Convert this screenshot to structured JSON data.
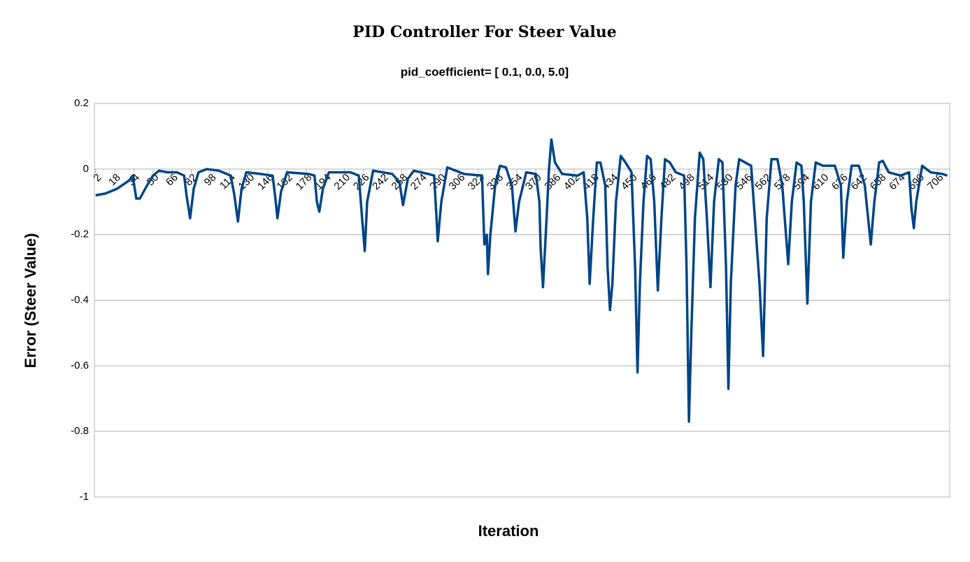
{
  "chart_data": {
    "type": "line",
    "title": "PID Controller For Steer Value",
    "subtitle": "pid_coefficient= [ 0.1, 0.0, 5.0]",
    "x_label": "Iteration",
    "y_label": "Error (Steer Value)",
    "xlim": [
      1,
      716
    ],
    "xticks": [
      2,
      18,
      34,
      50,
      66,
      82,
      98,
      114,
      130,
      146,
      162,
      178,
      194,
      210,
      226,
      242,
      258,
      274,
      290,
      306,
      322,
      338,
      354,
      370,
      386,
      402,
      418,
      434,
      450,
      466,
      482,
      498,
      514,
      530,
      546,
      562,
      578,
      594,
      610,
      626,
      642,
      658,
      674,
      690,
      706
    ],
    "ylim": [
      -1,
      0.2
    ],
    "yticks": [
      -1,
      -0.8,
      -0.6,
      -0.4,
      -0.2,
      0,
      0.2
    ],
    "grid": true,
    "x": [
      2,
      10,
      20,
      30,
      33,
      36,
      39,
      45,
      50,
      55,
      62,
      70,
      76,
      78,
      81,
      84,
      88,
      95,
      105,
      115,
      118,
      121,
      124,
      128,
      140,
      150,
      152,
      154,
      157,
      162,
      180,
      185,
      187,
      189,
      192,
      197,
      215,
      222,
      225,
      227,
      229,
      234,
      250,
      256,
      259,
      263,
      268,
      280,
      285,
      287,
      288,
      291,
      296,
      310,
      325,
      327,
      329,
      330,
      332,
      336,
      340,
      345,
      350,
      353,
      356,
      362,
      370,
      373,
      374,
      376,
      379,
      381,
      383,
      386,
      392,
      405,
      410,
      413,
      415,
      418,
      421,
      424,
      428,
      430,
      432,
      434,
      437,
      441,
      445,
      450,
      453,
      455,
      457,
      460,
      463,
      466,
      469,
      472,
      475,
      478,
      482,
      487,
      494,
      496,
      498,
      500,
      503,
      507,
      510,
      513,
      516,
      519,
      523,
      526,
      529,
      531,
      533,
      537,
      540,
      545,
      550,
      557,
      560,
      563,
      567,
      572,
      576,
      581,
      584,
      588,
      592,
      594,
      597,
      600,
      604,
      610,
      620,
      625,
      627,
      630,
      634,
      640,
      645,
      650,
      653,
      657,
      660,
      665,
      675,
      682,
      684,
      686,
      688,
      693,
      700,
      710,
      714
    ],
    "series": [
      {
        "color": "#004586",
        "values": [
          -0.08,
          -0.075,
          -0.06,
          -0.035,
          -0.02,
          -0.09,
          -0.09,
          -0.05,
          -0.02,
          -0.005,
          -0.01,
          -0.01,
          -0.02,
          -0.08,
          -0.15,
          -0.06,
          -0.01,
          0,
          -0.005,
          -0.02,
          -0.08,
          -0.16,
          -0.06,
          -0.01,
          -0.015,
          -0.02,
          -0.08,
          -0.15,
          -0.07,
          -0.01,
          -0.015,
          -0.02,
          -0.1,
          -0.13,
          -0.06,
          -0.01,
          -0.01,
          -0.02,
          -0.16,
          -0.25,
          -0.1,
          -0.005,
          -0.015,
          -0.04,
          -0.11,
          -0.03,
          -0.005,
          -0.015,
          -0.02,
          -0.15,
          -0.22,
          -0.1,
          0.005,
          -0.015,
          -0.02,
          -0.23,
          -0.2,
          -0.32,
          -0.2,
          -0.05,
          0.01,
          0.005,
          -0.05,
          -0.19,
          -0.1,
          -0.01,
          -0.015,
          -0.1,
          -0.24,
          -0.36,
          -0.15,
          0,
          0.09,
          0.02,
          -0.015,
          -0.02,
          -0.01,
          -0.15,
          -0.35,
          -0.15,
          0.02,
          0.02,
          -0.05,
          -0.3,
          -0.43,
          -0.35,
          -0.1,
          0.04,
          0.02,
          -0.01,
          -0.3,
          -0.62,
          -0.35,
          -0.1,
          0.04,
          0.03,
          -0.1,
          -0.37,
          -0.15,
          0.03,
          0.02,
          -0.01,
          -0.02,
          -0.3,
          -0.77,
          -0.5,
          -0.15,
          0.05,
          0.03,
          -0.15,
          -0.36,
          -0.1,
          0.03,
          0.02,
          -0.3,
          -0.67,
          -0.35,
          -0.05,
          0.03,
          0.02,
          0.01,
          -0.35,
          -0.57,
          -0.15,
          0.03,
          0.03,
          -0.05,
          -0.29,
          -0.1,
          0.02,
          0.01,
          -0.1,
          -0.41,
          -0.1,
          0.02,
          0.01,
          0.01,
          -0.05,
          -0.27,
          -0.1,
          0.01,
          0.01,
          -0.05,
          -0.23,
          -0.1,
          0.02,
          0.025,
          -0.01,
          -0.02,
          -0.01,
          -0.12,
          -0.18,
          -0.1,
          0.01,
          -0.01,
          -0.015,
          -0.02
        ]
      }
    ]
  }
}
